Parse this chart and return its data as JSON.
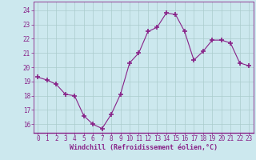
{
  "x": [
    0,
    1,
    2,
    3,
    4,
    5,
    6,
    7,
    8,
    9,
    10,
    11,
    12,
    13,
    14,
    15,
    16,
    17,
    18,
    19,
    20,
    21,
    22,
    23
  ],
  "y": [
    19.3,
    19.1,
    18.8,
    18.1,
    18.0,
    16.6,
    16.0,
    15.7,
    16.7,
    18.1,
    20.3,
    21.0,
    22.5,
    22.8,
    23.8,
    23.7,
    22.5,
    20.5,
    21.1,
    21.9,
    21.9,
    21.7,
    20.3,
    20.1
  ],
  "line_color": "#882288",
  "marker": "+",
  "marker_size": 4,
  "marker_lw": 1.2,
  "bg_color": "#cce8ee",
  "grid_color": "#aacccc",
  "axis_color": "#882288",
  "tick_label_color": "#882288",
  "xlabel": "Windchill (Refroidissement éolien,°C)",
  "xlabel_color": "#882288",
  "xlabel_fontsize": 6.0,
  "tick_fontsize": 5.5,
  "yticks": [
    16,
    17,
    18,
    19,
    20,
    21,
    22,
    23,
    24
  ],
  "ylim": [
    15.4,
    24.6
  ],
  "xlim": [
    -0.5,
    23.5
  ],
  "xticks": [
    0,
    1,
    2,
    3,
    4,
    5,
    6,
    7,
    8,
    9,
    10,
    11,
    12,
    13,
    14,
    15,
    16,
    17,
    18,
    19,
    20,
    21,
    22,
    23
  ],
  "line_width": 0.8
}
